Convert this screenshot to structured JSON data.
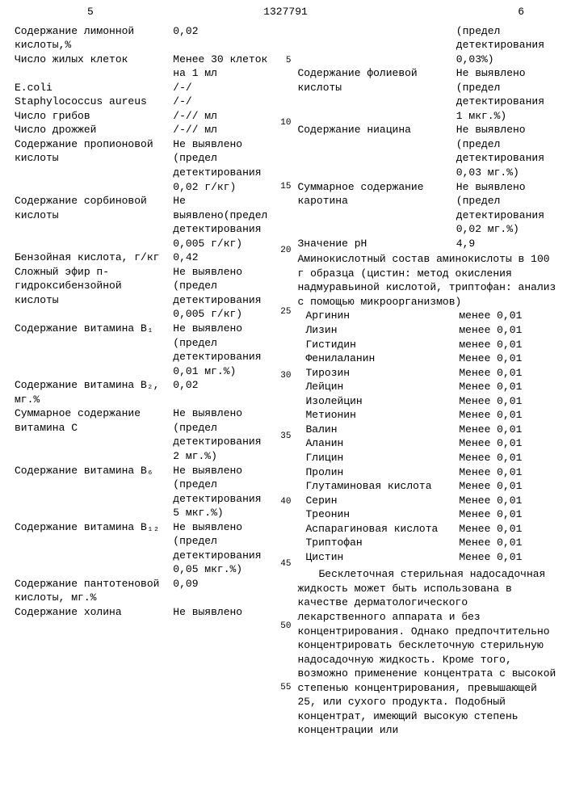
{
  "doc_number": "1327791",
  "col_left_num": "5",
  "col_right_num": "6",
  "line_markers": [
    "5",
    "10",
    "15",
    "20",
    "25",
    "30",
    "35",
    "40",
    "45",
    "50",
    "55"
  ],
  "left": [
    {
      "l": "Содержание лимонной кислоты,%",
      "v": "0,02"
    },
    {
      "l": "Число жилых клеток",
      "v": "Менее 30 клеток на 1 мл"
    },
    {
      "l": "E.coli",
      "v": "/-/"
    },
    {
      "l": "Staphylococcus aureus",
      "v": "/-/"
    },
    {
      "l": "Число грибов",
      "v": "/-// мл"
    },
    {
      "l": "Число дрожжей",
      "v": "/-// мл"
    },
    {
      "l": "Содержание пропионовой кислоты",
      "v": "Не выявлено (предел детектирования 0,02 г/кг)"
    },
    {
      "l": "Содержание сорбиновой кислоты",
      "v": "Не выявлено(предел детектирования 0,005 г/кг)"
    },
    {
      "l": "Бензойная кислота, г/кг",
      "v": "0,42"
    },
    {
      "l": "Сложный эфир п-гидроксибензойной кислоты",
      "v": "Не выявлено (предел детектирования 0,005 г/кг)"
    },
    {
      "l": "Содержание витамина B₁",
      "v": "Не выявлено (предел детектирования 0,01 мг.%)"
    },
    {
      "l": "Содержание витамина B₂, мг.%",
      "v": "0,02"
    },
    {
      "l": "Суммарное содержание витамина С",
      "v": "Не выявлено (предел детектирования 2 мг.%)"
    },
    {
      "l": "Содержание витамина B₆",
      "v": "Не выявлено (предел детектирования 5 мкг.%)"
    },
    {
      "l": "Содержание витамина B₁₂",
      "v": "Не выявлено (предел детектирования 0,05 мкг.%)"
    },
    {
      "l": "Содержание пантотеновой кислоты, мг.%",
      "v": "0,09"
    },
    {
      "l": "Содержание холина",
      "v": "Не выявлено"
    }
  ],
  "right_top": [
    {
      "l": "",
      "v": "(предел детектирования 0,03%)"
    },
    {
      "l": "Содержание фолиевой кислоты",
      "v": "Не выявлено (предел детектирования 1 мкг.%)"
    },
    {
      "l": "Содержание ниацина",
      "v": "Не выявлено (предел детектирования 0,03 мг.%)"
    },
    {
      "l": "Суммарное содержание каротина",
      "v": "Не выявлено (предел детектирования 0,02 мг.%)"
    },
    {
      "l": "Значение pH",
      "v": "4,9"
    }
  ],
  "amino_header": "Аминокислотный состав аминокислоты в 100 г образца (цистин: метод окисления надмуравьиной кислотой, триптофан: анализ с помощью микроорганизмов)",
  "amino": [
    {
      "n": "Аргинин",
      "v": "менее 0,01"
    },
    {
      "n": "Лизин",
      "v": "менее 0,01"
    },
    {
      "n": "Гистидин",
      "v": "менее 0,01"
    },
    {
      "n": "Фенилаланин",
      "v": "Менее 0,01"
    },
    {
      "n": "Тирозин",
      "v": "Менее 0,01"
    },
    {
      "n": "Лейцин",
      "v": "Менее 0,01"
    },
    {
      "n": "Изолейцин",
      "v": "Менее 0,01"
    },
    {
      "n": "Метионин",
      "v": "Менее 0,01"
    },
    {
      "n": "Валин",
      "v": "Менее 0,01"
    },
    {
      "n": "Аланин",
      "v": "Менее 0,01"
    },
    {
      "n": "Глицин",
      "v": "Менее 0,01"
    },
    {
      "n": "Пролин",
      "v": "Менее 0,01"
    },
    {
      "n": "Глутаминовая кислота",
      "v": "Менее 0,01"
    },
    {
      "n": "Серин",
      "v": "Менее 0,01"
    },
    {
      "n": "Треонин",
      "v": "Менее 0,01"
    },
    {
      "n": "Аспарагиновая кислота",
      "v": "Менее 0,01"
    },
    {
      "n": "Триптофан",
      "v": "Менее 0,01"
    },
    {
      "n": "Цистин",
      "v": "Менее 0,01"
    }
  ],
  "paragraph": "Бесклеточная стерильная надосадочная жидкость может быть использована в качестве дерматологического лекарственного аппарата и без концентрирования. Однако предпочтительно концентрировать бесклеточную стерильную надосадочную жидкость. Кроме того, возможно применение концентрата с высокой степенью концентрирования, превышающей 25, или сухого продукта. Подобный концентрат, имеющий высокую степень концентрации или"
}
